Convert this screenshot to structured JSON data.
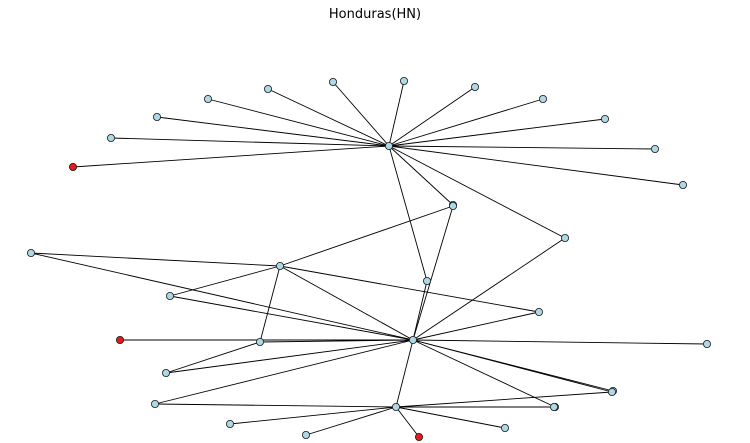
{
  "title": "Honduras(HN)",
  "colors": {
    "background": "#ffffff",
    "edge": "#000000",
    "node_default": "#add8e6",
    "node_highlight": "#e41a1c",
    "node_stroke": "#1a1a1a"
  },
  "graph": {
    "nodes": [
      {
        "id": "h1",
        "color": "default"
      },
      {
        "id": "h2",
        "color": "default"
      },
      {
        "id": "h3",
        "color": "default"
      },
      {
        "id": "h4",
        "color": "default"
      },
      {
        "id": "n1",
        "color": "default"
      },
      {
        "id": "n2",
        "color": "default"
      },
      {
        "id": "n3",
        "color": "default"
      },
      {
        "id": "n4",
        "color": "default"
      },
      {
        "id": "n5",
        "color": "default"
      },
      {
        "id": "n6",
        "color": "default"
      },
      {
        "id": "n7",
        "color": "default"
      },
      {
        "id": "n8",
        "color": "default"
      },
      {
        "id": "n9",
        "color": "default"
      },
      {
        "id": "n10",
        "color": "highlight"
      },
      {
        "id": "n11",
        "color": "default"
      },
      {
        "id": "n12",
        "color": "default"
      },
      {
        "id": "n13",
        "color": "default"
      },
      {
        "id": "n14",
        "color": "default"
      },
      {
        "id": "n15",
        "color": "default"
      },
      {
        "id": "n16",
        "color": "default"
      },
      {
        "id": "n17",
        "color": "default"
      },
      {
        "id": "n18",
        "color": "default"
      },
      {
        "id": "n19",
        "color": "default"
      },
      {
        "id": "n20",
        "color": "default"
      },
      {
        "id": "n21",
        "color": "default"
      },
      {
        "id": "n22",
        "color": "default"
      },
      {
        "id": "n23",
        "color": "highlight"
      },
      {
        "id": "n24",
        "color": "default"
      },
      {
        "id": "n25",
        "color": "default"
      },
      {
        "id": "n26",
        "color": "default"
      },
      {
        "id": "n27",
        "color": "default"
      },
      {
        "id": "n28",
        "color": "default"
      },
      {
        "id": "n29",
        "color": "default"
      },
      {
        "id": "n30",
        "color": "highlight"
      },
      {
        "id": "n31",
        "color": "default"
      },
      {
        "id": "n32",
        "color": "default"
      }
    ],
    "edges": [
      [
        "h1",
        "n1"
      ],
      [
        "h1",
        "n2"
      ],
      [
        "h1",
        "n3"
      ],
      [
        "h1",
        "n4"
      ],
      [
        "h1",
        "n5"
      ],
      [
        "h1",
        "n6"
      ],
      [
        "h1",
        "n7"
      ],
      [
        "h1",
        "n8"
      ],
      [
        "h1",
        "n9"
      ],
      [
        "h1",
        "n10"
      ],
      [
        "h1",
        "n11"
      ],
      [
        "h1",
        "n12"
      ],
      [
        "h1",
        "n13"
      ],
      [
        "h1",
        "n14"
      ],
      [
        "h1",
        "n15"
      ],
      [
        "n15",
        "h3"
      ],
      [
        "h3",
        "n16"
      ],
      [
        "h3",
        "n19"
      ],
      [
        "h3",
        "n17"
      ],
      [
        "h3",
        "n20"
      ],
      [
        "h3",
        "n18"
      ],
      [
        "h3",
        "n22"
      ],
      [
        "h3",
        "n24"
      ],
      [
        "h3",
        "n25"
      ],
      [
        "h3",
        "n26"
      ],
      [
        "h3",
        "n23"
      ],
      [
        "h3",
        "n27"
      ],
      [
        "h3",
        "h4"
      ],
      [
        "h3",
        "n14"
      ],
      [
        "h3",
        "h2"
      ],
      [
        "h2",
        "n16"
      ],
      [
        "h2",
        "n17"
      ],
      [
        "h2",
        "n18"
      ],
      [
        "h2",
        "n19"
      ],
      [
        "h2",
        "n20"
      ],
      [
        "n18",
        "n21"
      ],
      [
        "n21",
        "h3"
      ],
      [
        "h4",
        "n26"
      ],
      [
        "h4",
        "n27"
      ],
      [
        "h4",
        "n28"
      ],
      [
        "h4",
        "n29"
      ],
      [
        "h4",
        "n30"
      ],
      [
        "h4",
        "n31"
      ],
      [
        "h4",
        "n32"
      ]
    ]
  }
}
